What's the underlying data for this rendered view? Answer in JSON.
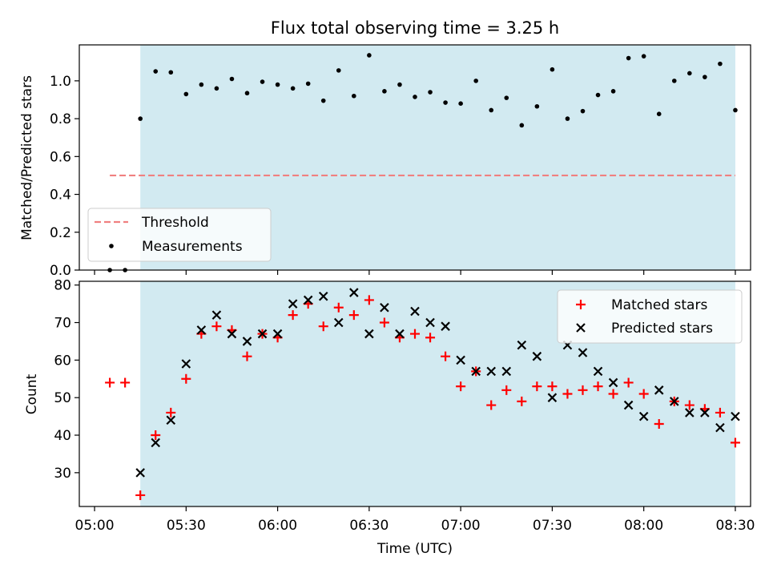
{
  "title": "Flux total observing time = 3.25 h",
  "colors": {
    "shade": "#add8e6",
    "threshold": "#f08080",
    "matched": "#ff0000",
    "predicted": "#000000",
    "measurement": "#000000"
  },
  "chart_data": [
    {
      "type": "scatter",
      "panel": "top",
      "ylabel": "Matched/Predicted stars",
      "xlabel": "",
      "ylim": [
        0,
        1.19
      ],
      "yticks": [
        0.0,
        0.2,
        0.4,
        0.6,
        0.8,
        1.0
      ],
      "ytick_labels": [
        "0.0",
        "0.2",
        "0.4",
        "0.6",
        "0.8",
        "1.0"
      ],
      "x_unit": "minutes after 05:00 UTC",
      "shaded_span": [
        15,
        210
      ],
      "legend_position": "lower-left",
      "series": [
        {
          "name": "Threshold",
          "style": "dashed-line",
          "x": [
            5,
            210
          ],
          "y": [
            0.5,
            0.5
          ]
        },
        {
          "name": "Measurements",
          "style": "dot",
          "x": [
            5,
            10,
            15,
            20,
            25,
            30,
            35,
            40,
            45,
            50,
            55,
            60,
            65,
            70,
            75,
            80,
            85,
            90,
            95,
            100,
            105,
            110,
            115,
            120,
            125,
            130,
            135,
            140,
            145,
            150,
            155,
            160,
            165,
            170,
            175,
            180,
            185,
            190,
            195,
            200,
            205,
            210
          ],
          "y": [
            0.0,
            0.0,
            0.8,
            1.05,
            1.045,
            0.93,
            0.98,
            0.96,
            1.01,
            0.935,
            0.995,
            0.98,
            0.96,
            0.985,
            0.895,
            1.055,
            0.92,
            1.135,
            0.945,
            0.98,
            0.915,
            0.94,
            0.885,
            0.88,
            1.0,
            0.845,
            0.91,
            0.765,
            0.865,
            1.06,
            0.8,
            0.84,
            0.925,
            0.945,
            1.12,
            1.13,
            0.825,
            1.0,
            1.04,
            1.02,
            1.09,
            0.845
          ]
        }
      ]
    },
    {
      "type": "scatter",
      "panel": "bottom",
      "ylabel": "Count",
      "xlabel": "Time (UTC)",
      "xlim": [
        "04:55",
        "08:35"
      ],
      "ylim": [
        21,
        81
      ],
      "yticks": [
        30,
        40,
        50,
        60,
        70,
        80
      ],
      "ytick_labels": [
        "30",
        "40",
        "50",
        "60",
        "70",
        "80"
      ],
      "xticks": [
        "05:00",
        "05:30",
        "06:00",
        "06:30",
        "07:00",
        "07:30",
        "08:00",
        "08:30"
      ],
      "x_unit": "minutes after 05:00 UTC",
      "shaded_span": [
        15,
        210
      ],
      "legend_position": "upper-right",
      "series": [
        {
          "name": "Matched stars",
          "marker": "plus",
          "x": [
            5,
            10,
            15,
            20,
            25,
            30,
            35,
            40,
            45,
            50,
            55,
            60,
            65,
            70,
            75,
            80,
            85,
            90,
            95,
            100,
            105,
            110,
            115,
            120,
            125,
            130,
            135,
            140,
            145,
            150,
            155,
            160,
            165,
            170,
            175,
            180,
            185,
            190,
            195,
            200,
            205,
            210
          ],
          "y": [
            54,
            54,
            24,
            40,
            46,
            55,
            67,
            69,
            68,
            61,
            67,
            66,
            72,
            75,
            69,
            74,
            72,
            76,
            70,
            66,
            67,
            66,
            61,
            53,
            57,
            48,
            52,
            49,
            53,
            53,
            51,
            52,
            53,
            51,
            54,
            51,
            43,
            49,
            48,
            47,
            46,
            38
          ]
        },
        {
          "name": "Predicted stars",
          "marker": "x",
          "x": [
            15,
            20,
            25,
            30,
            35,
            40,
            45,
            50,
            55,
            60,
            65,
            70,
            75,
            80,
            85,
            90,
            95,
            100,
            105,
            110,
            115,
            120,
            125,
            130,
            135,
            140,
            145,
            150,
            155,
            160,
            165,
            170,
            175,
            180,
            185,
            190,
            195,
            200,
            205,
            210
          ],
          "y": [
            30,
            38,
            44,
            59,
            68,
            72,
            67,
            65,
            67,
            67,
            75,
            76,
            77,
            70,
            78,
            67,
            74,
            67,
            73,
            70,
            69,
            60,
            57,
            57,
            57,
            64,
            61,
            50,
            64,
            62,
            57,
            54,
            48,
            45,
            52,
            49,
            46,
            46,
            42,
            45
          ]
        }
      ]
    }
  ]
}
